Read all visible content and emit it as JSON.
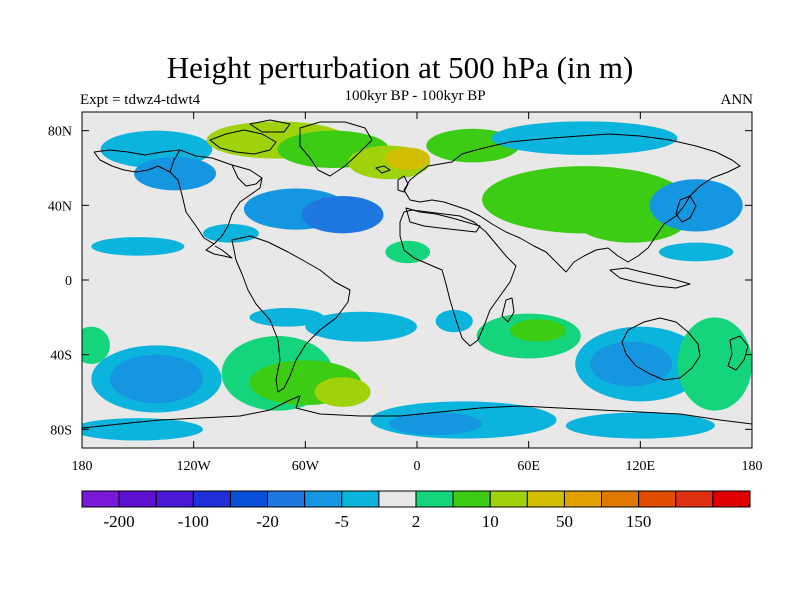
{
  "title": "Height perturbation at 500 hPa (in m)",
  "left_label": "Expt = tdwz4-tdwt4",
  "center_label": "100kyr BP - 100kyr BP",
  "right_label": "ANN",
  "colors": {
    "background": "#e8e8e8",
    "coast": "#000000",
    "palette": [
      "#7a1ad8",
      "#6010d0",
      "#4a1ad8",
      "#2030d8",
      "#0a50d8",
      "#1e78e0",
      "#1496e0",
      "#0ab4dc",
      "#e8e8e8",
      "#14d47c",
      "#3ccc14",
      "#a0d20a",
      "#d2be00",
      "#e0a000",
      "#e07800",
      "#e04c00",
      "#e03014",
      "#e00000"
    ]
  },
  "map": {
    "lat_ticks": [
      "80N",
      "40N",
      "0",
      "40S",
      "80S"
    ],
    "lon_ticks": [
      "180",
      "120W",
      "60W",
      "0",
      "60E",
      "120E",
      "180"
    ],
    "lon_range": [
      -180,
      180
    ],
    "lat_range": [
      -90,
      90
    ]
  },
  "colorbar": {
    "labels": [
      "-200",
      "-100",
      "-20",
      "-5",
      "2",
      "10",
      "50",
      "150"
    ]
  },
  "fields": [
    {
      "lon": -140,
      "lat": 70,
      "rx": 30,
      "ry": 10,
      "level": 7
    },
    {
      "lon": -130,
      "lat": 57,
      "rx": 22,
      "ry": 9,
      "level": 6
    },
    {
      "lon": -75,
      "lat": 75,
      "rx": 38,
      "ry": 10,
      "level": 11
    },
    {
      "lon": -45,
      "lat": 70,
      "rx": 30,
      "ry": 10,
      "level": 10
    },
    {
      "lon": -15,
      "lat": 63,
      "rx": 22,
      "ry": 9,
      "level": 11
    },
    {
      "lon": -5,
      "lat": 65,
      "rx": 12,
      "ry": 6,
      "level": 12
    },
    {
      "lon": 30,
      "lat": 72,
      "rx": 25,
      "ry": 9,
      "level": 10
    },
    {
      "lon": 90,
      "lat": 76,
      "rx": 50,
      "ry": 9,
      "level": 7
    },
    {
      "lon": 90,
      "lat": 43,
      "rx": 55,
      "ry": 18,
      "level": 10
    },
    {
      "lon": 115,
      "lat": 32,
      "rx": 30,
      "ry": 12,
      "level": 10
    },
    {
      "lon": 150,
      "lat": 40,
      "rx": 25,
      "ry": 14,
      "level": 6
    },
    {
      "lon": -65,
      "lat": 38,
      "rx": 28,
      "ry": 11,
      "level": 6
    },
    {
      "lon": -40,
      "lat": 35,
      "rx": 22,
      "ry": 10,
      "level": 5
    },
    {
      "lon": -150,
      "lat": 18,
      "rx": 25,
      "ry": 5,
      "level": 7
    },
    {
      "lon": -100,
      "lat": 25,
      "rx": 15,
      "ry": 5,
      "level": 7
    },
    {
      "lon": -5,
      "lat": 15,
      "rx": 12,
      "ry": 6,
      "level": 9
    },
    {
      "lon": 150,
      "lat": 15,
      "rx": 20,
      "ry": 5,
      "level": 7
    },
    {
      "lon": -70,
      "lat": -20,
      "rx": 20,
      "ry": 5,
      "level": 7
    },
    {
      "lon": -30,
      "lat": -25,
      "rx": 30,
      "ry": 8,
      "level": 7
    },
    {
      "lon": 20,
      "lat": -22,
      "rx": 10,
      "ry": 6,
      "level": 7
    },
    {
      "lon": 60,
      "lat": -30,
      "rx": 28,
      "ry": 12,
      "level": 9
    },
    {
      "lon": 65,
      "lat": -27,
      "rx": 15,
      "ry": 6,
      "level": 10
    },
    {
      "lon": 120,
      "lat": -45,
      "rx": 35,
      "ry": 20,
      "level": 7
    },
    {
      "lon": 115,
      "lat": -45,
      "rx": 22,
      "ry": 12,
      "level": 6
    },
    {
      "lon": 160,
      "lat": -45,
      "rx": 20,
      "ry": 25,
      "level": 9
    },
    {
      "lon": -175,
      "lat": -35,
      "rx": 10,
      "ry": 10,
      "level": 9
    },
    {
      "lon": -140,
      "lat": -53,
      "rx": 35,
      "ry": 18,
      "level": 7
    },
    {
      "lon": -140,
      "lat": -53,
      "rx": 25,
      "ry": 13,
      "level": 6
    },
    {
      "lon": -75,
      "lat": -50,
      "rx": 30,
      "ry": 20,
      "level": 9
    },
    {
      "lon": -60,
      "lat": -55,
      "rx": 30,
      "ry": 12,
      "level": 10
    },
    {
      "lon": -40,
      "lat": -60,
      "rx": 15,
      "ry": 8,
      "level": 11
    },
    {
      "lon": -150,
      "lat": -80,
      "rx": 35,
      "ry": 6,
      "level": 7
    },
    {
      "lon": 25,
      "lat": -75,
      "rx": 50,
      "ry": 10,
      "level": 7
    },
    {
      "lon": 10,
      "lat": -77,
      "rx": 25,
      "ry": 6,
      "level": 6
    },
    {
      "lon": 120,
      "lat": -78,
      "rx": 40,
      "ry": 7,
      "level": 7
    }
  ]
}
